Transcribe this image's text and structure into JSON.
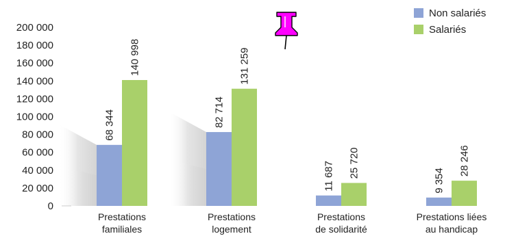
{
  "chart_data": {
    "type": "bar",
    "categories": [
      [
        "Prestations",
        "familiales"
      ],
      [
        "Prestations",
        "logement"
      ],
      [
        "Prestations",
        "de solidarité"
      ],
      [
        "Prestations liées",
        "au handicap"
      ]
    ],
    "series": [
      {
        "name": "Non salariés",
        "color": "#8ea4d6",
        "values": [
          68344,
          82714,
          11687,
          9354
        ],
        "labels": [
          "68 344",
          "82 714",
          "11 687",
          "9 354"
        ]
      },
      {
        "name": "Salariés",
        "color": "#a9d06a",
        "values": [
          140998,
          131259,
          25720,
          28246
        ],
        "labels": [
          "140 998",
          "131 259",
          "25 720",
          "28 246"
        ]
      }
    ],
    "yticks": [
      {
        "value": 0,
        "label": "0"
      },
      {
        "value": 20000,
        "label": "20 000"
      },
      {
        "value": 40000,
        "label": "40 000"
      },
      {
        "value": 60000,
        "label": "60 000"
      },
      {
        "value": 80000,
        "label": "80 000"
      },
      {
        "value": 100000,
        "label": "100 000"
      },
      {
        "value": 120000,
        "label": "120 000"
      },
      {
        "value": 140000,
        "label": "140 000"
      },
      {
        "value": 160000,
        "label": "160 000"
      },
      {
        "value": 180000,
        "label": "180 000"
      },
      {
        "value": 200000,
        "label": "200 000"
      }
    ],
    "ylim": [
      0,
      200000
    ],
    "grid": false,
    "legend_position": "top-right",
    "pushpin_icon": "pushpin-icon",
    "pushpin_color": "#ff00ff"
  }
}
